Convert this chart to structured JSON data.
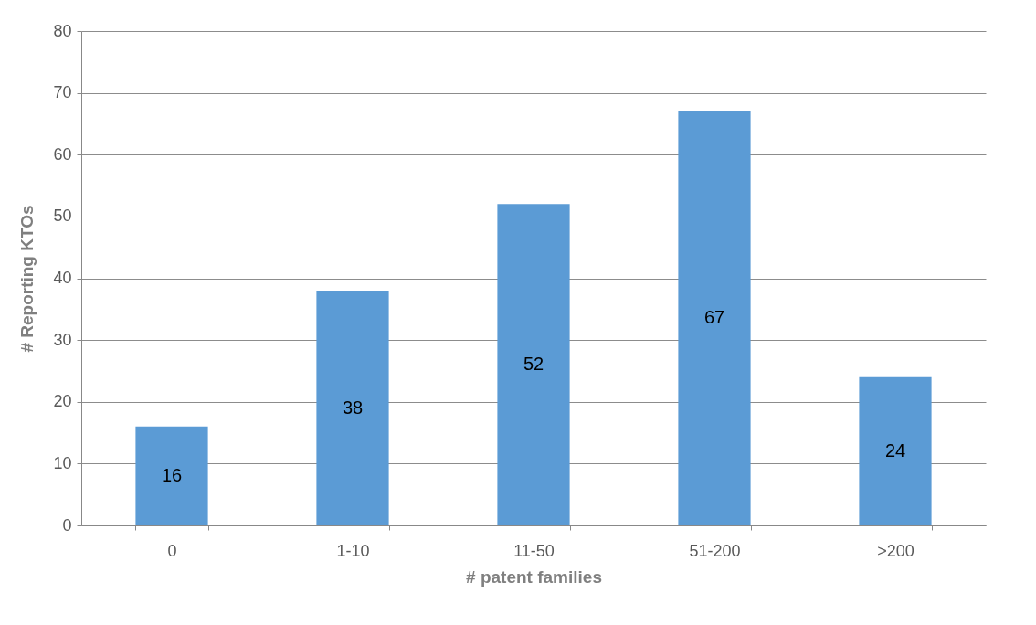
{
  "chart_data": {
    "type": "bar",
    "xlabel": "# patent families",
    "ylabel": "# Reporting KTOs",
    "categories": [
      "0",
      "1-10",
      "11-50",
      "51-200",
      ">200"
    ],
    "values": [
      16,
      38,
      52,
      67,
      24
    ],
    "color": "#5b9bd5",
    "ylim": [
      0,
      80
    ],
    "yticks": [
      0,
      10,
      20,
      30,
      40,
      50,
      60,
      70,
      80
    ],
    "grid": "y",
    "data_labels": true
  }
}
